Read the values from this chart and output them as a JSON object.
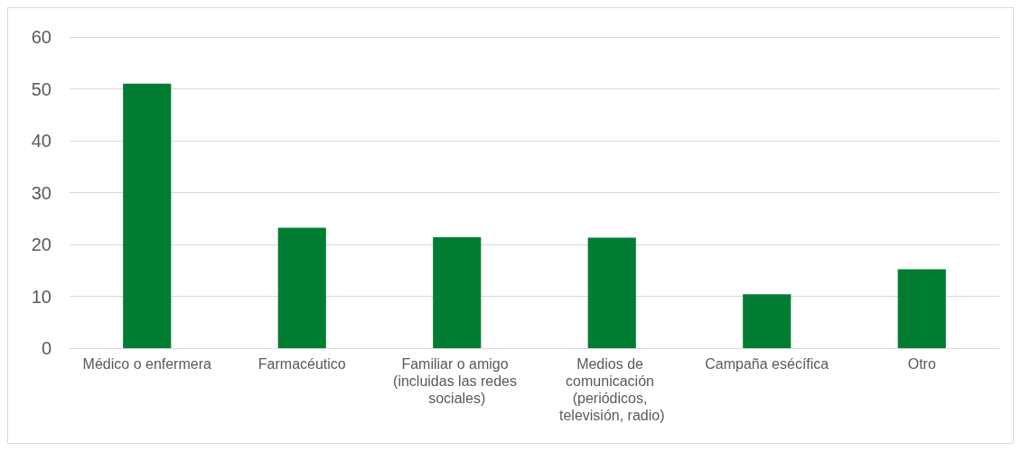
{
  "chart_data": {
    "type": "bar",
    "categories": [
      "Médico o enfermera",
      "Farmacéutico",
      "Familiar o amigo (incluidas las redes sociales)",
      "Medios de comunicación (periódicos, televisión, radio)",
      "Campaña esécífica",
      "Otro"
    ],
    "values": [
      51.0,
      23.2,
      21.4,
      21.3,
      10.4,
      15.2
    ],
    "color": "#007d32",
    "ylim": [
      0,
      60
    ],
    "yticks": [
      0,
      10,
      20,
      30,
      40,
      50,
      60
    ],
    "grid": "y"
  }
}
